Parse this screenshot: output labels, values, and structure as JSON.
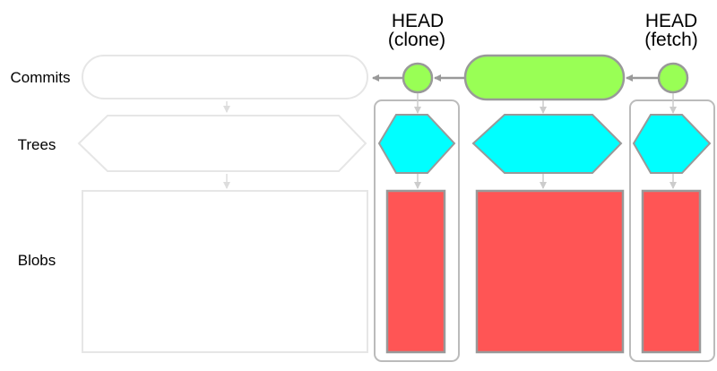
{
  "row_labels": {
    "commits": "Commits",
    "trees": "Trees",
    "blobs": "Blobs"
  },
  "heads": {
    "clone": {
      "line1": "HEAD",
      "line2": "(clone)"
    },
    "fetch": {
      "line1": "HEAD",
      "line2": "(fetch)"
    }
  },
  "colors": {
    "commit": "#99ff55",
    "tree": "#00ffff",
    "blob": "#ff5555",
    "stroke": "#999999",
    "faded": "#e6e6e6",
    "group_box": "#bbbbbb"
  }
}
